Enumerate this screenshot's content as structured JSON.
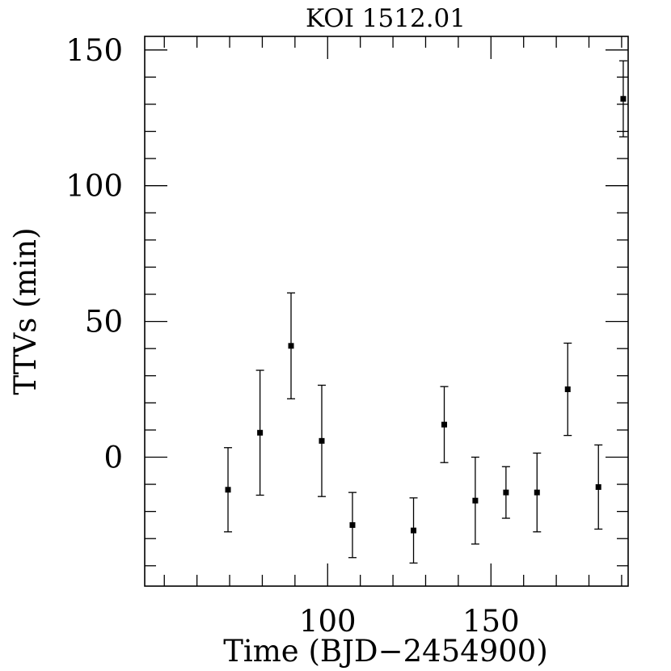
{
  "chart_data": {
    "type": "scatter",
    "title": "KOI 1512.01",
    "xlabel": "Time (BJD−2454900)",
    "ylabel": "TTVs (min)",
    "xlim": [
      44,
      192
    ],
    "ylim": [
      -47.5,
      155
    ],
    "x_ticks_labeled": [
      100,
      150
    ],
    "x_minor_step": 10,
    "y_ticks_labeled": [
      0,
      50,
      100,
      150
    ],
    "y_minor_step": 10,
    "grid": false,
    "legend": "none",
    "series": [
      {
        "marker": "square",
        "error_bars": true,
        "points": [
          {
            "x": 69.5,
            "y": -12,
            "yerr": 15.5
          },
          {
            "x": 79.3,
            "y": 9,
            "yerr": 23
          },
          {
            "x": 88.8,
            "y": 41,
            "yerr": 19.5
          },
          {
            "x": 98.2,
            "y": 6,
            "yerr": 20.5
          },
          {
            "x": 107.6,
            "y": -25,
            "yerr": 12
          },
          {
            "x": 126.3,
            "y": -27,
            "yerr": 12
          },
          {
            "x": 135.7,
            "y": 12,
            "yerr": 14
          },
          {
            "x": 145.2,
            "y": -16,
            "yerr": 16
          },
          {
            "x": 154.6,
            "y": -13,
            "yerr": 9.5
          },
          {
            "x": 164.1,
            "y": -13,
            "yerr": 14.5
          },
          {
            "x": 173.5,
            "y": 25,
            "yerr": 17
          },
          {
            "x": 182.9,
            "y": -11,
            "yerr": 15.5
          },
          {
            "x": 190.5,
            "y": 132,
            "yerr": 14
          }
        ]
      }
    ]
  }
}
